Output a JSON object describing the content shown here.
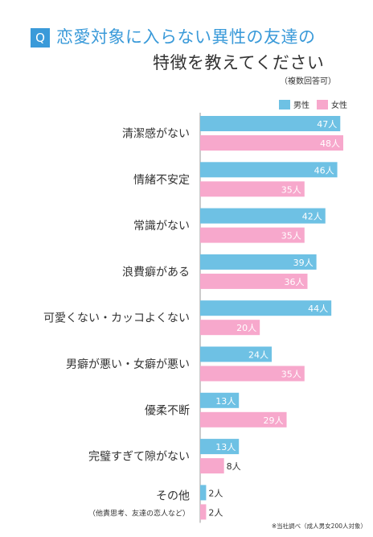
{
  "title": {
    "badge": "Q",
    "line1": "恋愛対象に入らない異性の友達の",
    "line2": "特徴を教えてください",
    "note": "（複数回答可）"
  },
  "footnote": "※当社調べ（成人男女200人対象）",
  "chart_data": {
    "type": "bar",
    "orientation": "horizontal",
    "categories": [
      "清潔感がない",
      "情緒不安定",
      "常識がない",
      "浪費癖がある",
      "可愛くない・カッコよくない",
      "男癖が悪い・女癖が悪い",
      "優柔不断",
      "完璧すぎて隙がない",
      "その他"
    ],
    "category_notes": [
      "",
      "",
      "",
      "",
      "",
      "",
      "",
      "",
      "（他責思考、友達の恋人など）"
    ],
    "unit": "人",
    "series": [
      {
        "name": "男性",
        "color": "#6ec1e4",
        "values": [
          47,
          46,
          42,
          39,
          44,
          24,
          13,
          13,
          2
        ]
      },
      {
        "name": "女性",
        "color": "#f7a8cc",
        "values": [
          48,
          35,
          35,
          36,
          20,
          35,
          29,
          8,
          2
        ]
      }
    ],
    "legend_position": "top-right",
    "grid": false,
    "xlim": [
      0,
      48
    ]
  }
}
